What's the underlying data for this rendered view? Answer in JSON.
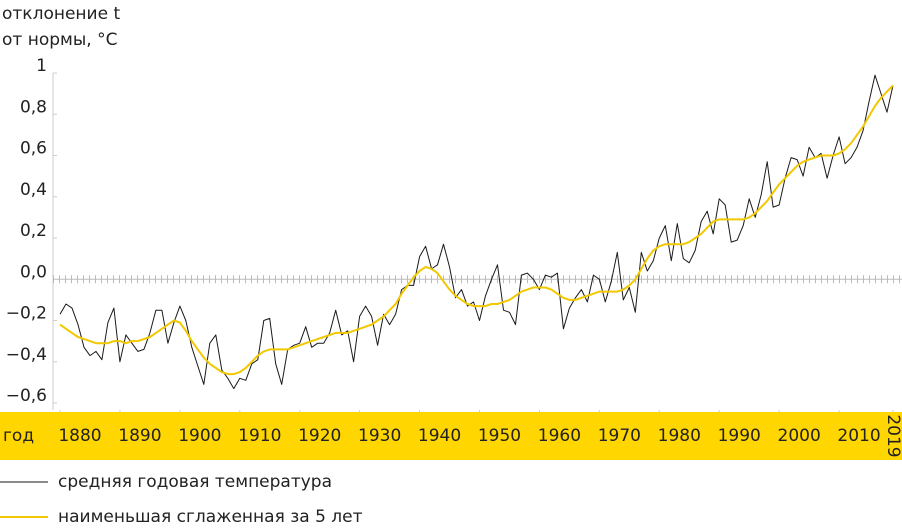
{
  "chart_data": {
    "type": "line",
    "y_label": [
      "отклонение t",
      "от нормы, °C"
    ],
    "x_label": "год",
    "x": [
      1880,
      1881,
      1882,
      1883,
      1884,
      1885,
      1886,
      1887,
      1888,
      1889,
      1890,
      1891,
      1892,
      1893,
      1894,
      1895,
      1896,
      1897,
      1898,
      1899,
      1900,
      1901,
      1902,
      1903,
      1904,
      1905,
      1906,
      1907,
      1908,
      1909,
      1910,
      1911,
      1912,
      1913,
      1914,
      1915,
      1916,
      1917,
      1918,
      1919,
      1920,
      1921,
      1922,
      1923,
      1924,
      1925,
      1926,
      1927,
      1928,
      1929,
      1930,
      1931,
      1932,
      1933,
      1934,
      1935,
      1936,
      1937,
      1938,
      1939,
      1940,
      1941,
      1942,
      1943,
      1944,
      1945,
      1946,
      1947,
      1948,
      1949,
      1950,
      1951,
      1952,
      1953,
      1954,
      1955,
      1956,
      1957,
      1958,
      1959,
      1960,
      1961,
      1962,
      1963,
      1964,
      1965,
      1966,
      1967,
      1968,
      1969,
      1970,
      1971,
      1972,
      1973,
      1974,
      1975,
      1976,
      1977,
      1978,
      1979,
      1980,
      1981,
      1982,
      1983,
      1984,
      1985,
      1986,
      1987,
      1988,
      1989,
      1990,
      1991,
      1992,
      1993,
      1994,
      1995,
      1996,
      1997,
      1998,
      1999,
      2000,
      2001,
      2002,
      2003,
      2004,
      2005,
      2006,
      2007,
      2008,
      2009,
      2010,
      2011,
      2012,
      2013,
      2014,
      2015,
      2016,
      2017,
      2018,
      2019
    ],
    "series": [
      {
        "name": "средняя годовая температура",
        "color": "#1a1a1a",
        "width": 1,
        "values": [
          -0.17,
          -0.12,
          -0.14,
          -0.22,
          -0.33,
          -0.37,
          -0.35,
          -0.39,
          -0.21,
          -0.14,
          -0.4,
          -0.27,
          -0.31,
          -0.35,
          -0.34,
          -0.26,
          -0.15,
          -0.15,
          -0.31,
          -0.21,
          -0.13,
          -0.2,
          -0.33,
          -0.42,
          -0.51,
          -0.31,
          -0.27,
          -0.44,
          -0.48,
          -0.53,
          -0.48,
          -0.49,
          -0.41,
          -0.39,
          -0.2,
          -0.19,
          -0.41,
          -0.51,
          -0.34,
          -0.32,
          -0.31,
          -0.23,
          -0.33,
          -0.31,
          -0.31,
          -0.26,
          -0.15,
          -0.27,
          -0.25,
          -0.4,
          -0.18,
          -0.13,
          -0.18,
          -0.32,
          -0.17,
          -0.22,
          -0.17,
          -0.05,
          -0.03,
          -0.03,
          0.11,
          0.16,
          0.05,
          0.07,
          0.17,
          0.06,
          -0.09,
          -0.05,
          -0.13,
          -0.11,
          -0.2,
          -0.08,
          0.0,
          0.07,
          -0.15,
          -0.16,
          -0.22,
          0.02,
          0.03,
          0.0,
          -0.05,
          0.02,
          0.01,
          0.03,
          -0.24,
          -0.14,
          -0.09,
          -0.05,
          -0.11,
          0.02,
          0.0,
          -0.11,
          -0.01,
          0.13,
          -0.1,
          -0.04,
          -0.16,
          0.13,
          0.04,
          0.09,
          0.2,
          0.26,
          0.09,
          0.27,
          0.1,
          0.08,
          0.14,
          0.28,
          0.33,
          0.22,
          0.39,
          0.36,
          0.18,
          0.19,
          0.26,
          0.39,
          0.3,
          0.41,
          0.57,
          0.35,
          0.36,
          0.49,
          0.59,
          0.58,
          0.5,
          0.64,
          0.59,
          0.61,
          0.49,
          0.6,
          0.69,
          0.56,
          0.59,
          0.64,
          0.72,
          0.86,
          0.99,
          0.9,
          0.81,
          0.94
        ]
      },
      {
        "name": "наименьшая сглаженная за 5 лет",
        "color": "#f2c800",
        "width": 2,
        "values": [
          -0.22,
          -0.24,
          -0.26,
          -0.28,
          -0.29,
          -0.3,
          -0.31,
          -0.31,
          -0.31,
          -0.3,
          -0.3,
          -0.31,
          -0.3,
          -0.3,
          -0.29,
          -0.28,
          -0.26,
          -0.24,
          -0.22,
          -0.2,
          -0.21,
          -0.25,
          -0.3,
          -0.34,
          -0.38,
          -0.41,
          -0.43,
          -0.45,
          -0.46,
          -0.46,
          -0.45,
          -0.43,
          -0.4,
          -0.37,
          -0.35,
          -0.34,
          -0.34,
          -0.34,
          -0.34,
          -0.33,
          -0.32,
          -0.31,
          -0.3,
          -0.29,
          -0.28,
          -0.27,
          -0.26,
          -0.26,
          -0.26,
          -0.25,
          -0.24,
          -0.23,
          -0.22,
          -0.2,
          -0.18,
          -0.15,
          -0.12,
          -0.07,
          -0.03,
          0.01,
          0.04,
          0.06,
          0.05,
          0.03,
          -0.01,
          -0.05,
          -0.08,
          -0.1,
          -0.12,
          -0.13,
          -0.13,
          -0.13,
          -0.12,
          -0.12,
          -0.11,
          -0.1,
          -0.08,
          -0.06,
          -0.05,
          -0.04,
          -0.04,
          -0.04,
          -0.05,
          -0.07,
          -0.09,
          -0.1,
          -0.1,
          -0.09,
          -0.08,
          -0.07,
          -0.06,
          -0.06,
          -0.06,
          -0.06,
          -0.05,
          -0.03,
          0.0,
          0.05,
          0.1,
          0.14,
          0.16,
          0.17,
          0.17,
          0.17,
          0.17,
          0.18,
          0.2,
          0.22,
          0.25,
          0.28,
          0.29,
          0.29,
          0.29,
          0.29,
          0.29,
          0.3,
          0.32,
          0.35,
          0.38,
          0.42,
          0.46,
          0.49,
          0.52,
          0.55,
          0.57,
          0.58,
          0.59,
          0.6,
          0.6,
          0.6,
          0.61,
          0.63,
          0.66,
          0.7,
          0.74,
          0.79,
          0.84,
          0.88,
          0.91,
          0.94
        ]
      }
    ],
    "xlim": [
      1880,
      2019
    ],
    "xticks": [
      1880,
      1890,
      1900,
      1910,
      1920,
      1930,
      1940,
      1950,
      1960,
      1970,
      1980,
      1990,
      2000,
      2010,
      2019
    ],
    "ylim": [
      -0.6,
      1
    ],
    "yticks": [
      {
        "value": -0.6,
        "label": "−0,6"
      },
      {
        "value": -0.4,
        "label": "−0,4"
      },
      {
        "value": -0.2,
        "label": "−0,2"
      },
      {
        "value": 0,
        "label": "0,0"
      },
      {
        "value": 0.2,
        "label": "0,2"
      },
      {
        "value": 0.4,
        "label": "0,4"
      },
      {
        "value": 0.6,
        "label": "0,6"
      },
      {
        "value": 0.8,
        "label": "0,8"
      },
      1
    ],
    "axis_band_color": "#ffd600"
  }
}
